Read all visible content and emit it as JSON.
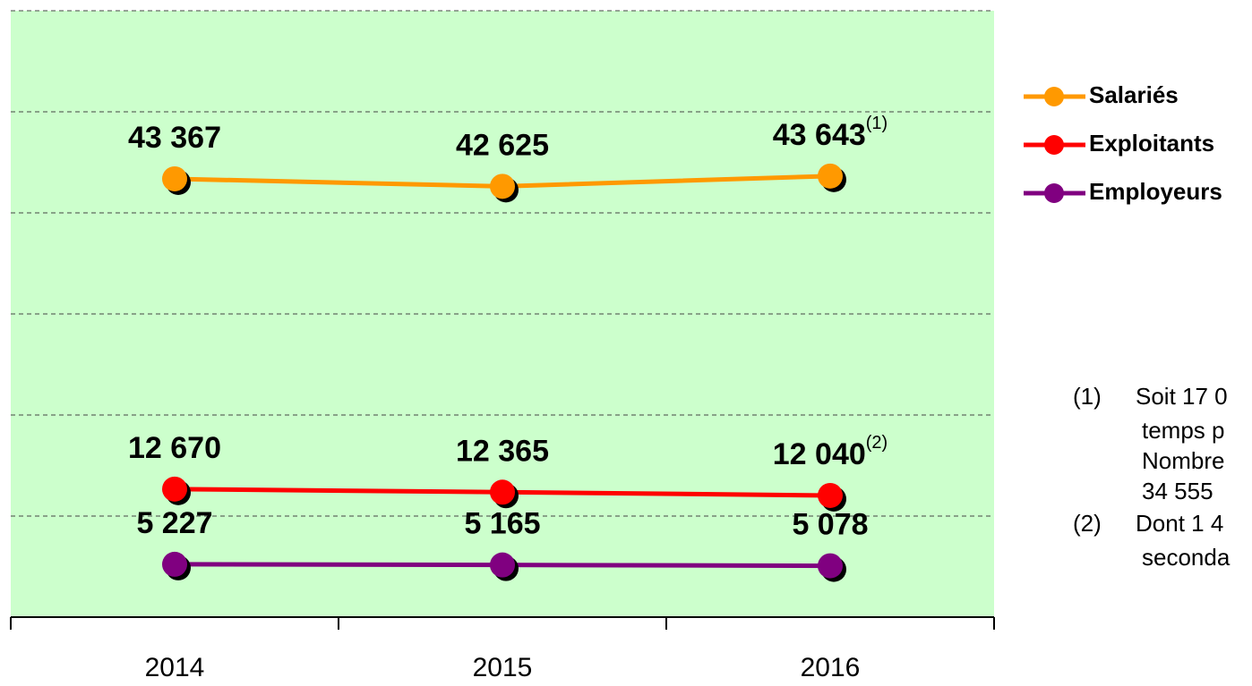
{
  "chart_data": {
    "type": "line",
    "categories": [
      "2014",
      "2015",
      "2016"
    ],
    "series": [
      {
        "name": "Salariés",
        "color": "#ff9900",
        "values": [
          43367,
          42625,
          43643
        ],
        "value_labels": [
          "43 367",
          "42 625",
          "43 643"
        ]
      },
      {
        "name": "Exploitants",
        "color": "#ff0000",
        "values": [
          12670,
          12365,
          12040
        ],
        "value_labels": [
          "12 670",
          "12 365",
          "12 040"
        ]
      },
      {
        "name": "Employeurs",
        "color": "#800080",
        "values": [
          5227,
          5165,
          5078
        ],
        "value_labels": [
          "5 227",
          "5 165",
          "5 078"
        ]
      }
    ],
    "annotations": [
      {
        "text": "(1)",
        "series": "Salariés",
        "category": "2016"
      },
      {
        "text": "(2)",
        "series": "Exploitants",
        "category": "2016"
      }
    ],
    "ylim": [
      0,
      60000
    ],
    "yticks": [
      0,
      10000,
      20000,
      30000,
      40000,
      50000,
      60000
    ],
    "grid": true,
    "legend": "right",
    "plot_background": "#ccffcc",
    "footnotes": [
      {
        "marker": "(1)",
        "lines": [
          "Soit 17 0",
          "temps p",
          "Nombre",
          "34 555"
        ]
      },
      {
        "marker": "(2)",
        "lines": [
          "Dont 1 4",
          "seconda"
        ]
      }
    ]
  }
}
